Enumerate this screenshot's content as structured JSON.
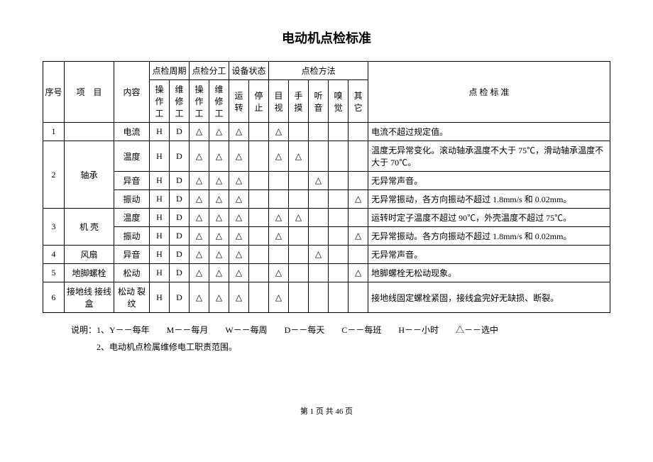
{
  "title": "电动机点检标准",
  "header": {
    "seq": "序号",
    "item": "项　目",
    "content": "内容",
    "period": "点检周期",
    "division": "点检分工",
    "state": "设备状态",
    "method": "点检方法",
    "standard": "点 检 标 准",
    "period_sub": [
      "操作工",
      "维修工"
    ],
    "division_sub": [
      "操作工",
      "维修工"
    ],
    "state_sub": [
      "运转",
      "停止"
    ],
    "method_sub": [
      "目视",
      "手摸",
      "听音",
      "嗅觉",
      "其它"
    ]
  },
  "triangle": "△",
  "rows": [
    {
      "seq": "1",
      "item": "",
      "content": "电流",
      "p1": "H",
      "p2": "D",
      "d1": "△",
      "d2": "△",
      "s1": "△",
      "s2": "",
      "m1": "△",
      "m2": "",
      "m3": "",
      "m4": "",
      "m5": "",
      "std": "电流不超过规定值。"
    },
    {
      "seq": "",
      "item": "",
      "content": "温度",
      "p1": "H",
      "p2": "D",
      "d1": "△",
      "d2": "△",
      "s1": "△",
      "s2": "",
      "m1": "△",
      "m2": "△",
      "m3": "",
      "m4": "",
      "m5": "",
      "std": "温度无异常变化。滚动轴承温度不大于 75℃，滑动轴承温度不大于 70℃。"
    },
    {
      "seq": "2",
      "item": "轴承",
      "content": "异音",
      "p1": "H",
      "p2": "D",
      "d1": "△",
      "d2": "△",
      "s1": "△",
      "s2": "",
      "m1": "",
      "m2": "",
      "m3": "△",
      "m4": "",
      "m5": "",
      "std": "无异常声音。"
    },
    {
      "seq": "",
      "item": "",
      "content": "振动",
      "p1": "H",
      "p2": "D",
      "d1": "△",
      "d2": "△",
      "s1": "△",
      "s2": "",
      "m1": "",
      "m2": "",
      "m3": "",
      "m4": "",
      "m5": "△",
      "std": "无异常振动，各方向振动不超过 1.8mm/s 和 0.02mm。"
    },
    {
      "seq": "",
      "item_span": "",
      "content": "温度",
      "p1": "H",
      "p2": "D",
      "d1": "△",
      "d2": "△",
      "s1": "△",
      "s2": "",
      "m1": "△",
      "m2": "△",
      "m3": "",
      "m4": "",
      "m5": "",
      "std": "运转时定子温度不超过 90℃，外壳温度不超过 75℃。"
    },
    {
      "seq": "3",
      "item": "机 壳",
      "content": "振动",
      "p1": "H",
      "p2": "D",
      "d1": "△",
      "d2": "△",
      "s1": "△",
      "s2": "",
      "m1": "△",
      "m2": "",
      "m3": "",
      "m4": "",
      "m5": "△",
      "std": "无异常振动。各方向振动不超过 1.8mm/s 和 0.02mm。"
    },
    {
      "seq": "4",
      "item": "风扇",
      "content": "异音",
      "p1": "H",
      "p2": "D",
      "d1": "△",
      "d2": "△",
      "s1": "△",
      "s2": "",
      "m1": "",
      "m2": "",
      "m3": "△",
      "m4": "",
      "m5": "",
      "std": "无异常声音。"
    },
    {
      "seq": "5",
      "item": "地脚螺栓",
      "content": "松动",
      "p1": "H",
      "p2": "D",
      "d1": "△",
      "d2": "△",
      "s1": "△",
      "s2": "",
      "m1": "△",
      "m2": "",
      "m3": "",
      "m4": "",
      "m5": "△",
      "std": "地脚螺栓无松动现象。"
    },
    {
      "seq": "6",
      "item": "接地线 接线盒",
      "content": "松动 裂纹",
      "p1": "H",
      "p2": "D",
      "d1": "△",
      "d2": "△",
      "s1": "△",
      "s2": "",
      "m1": "△",
      "m2": "",
      "m3": "",
      "m4": "",
      "m5": "",
      "std": "接地线固定螺栓紧固，接线盒完好无缺损、断裂。"
    }
  ],
  "notes": [
    "说明：1、Y－－每年　　M－－每月　　W－－每周　　D－－每天　　C－－每班　　H－－小时　　△－－选中",
    "　　　2、电动机点检属维修电工职责范围。"
  ],
  "page": "第 1 页 共 46 页"
}
